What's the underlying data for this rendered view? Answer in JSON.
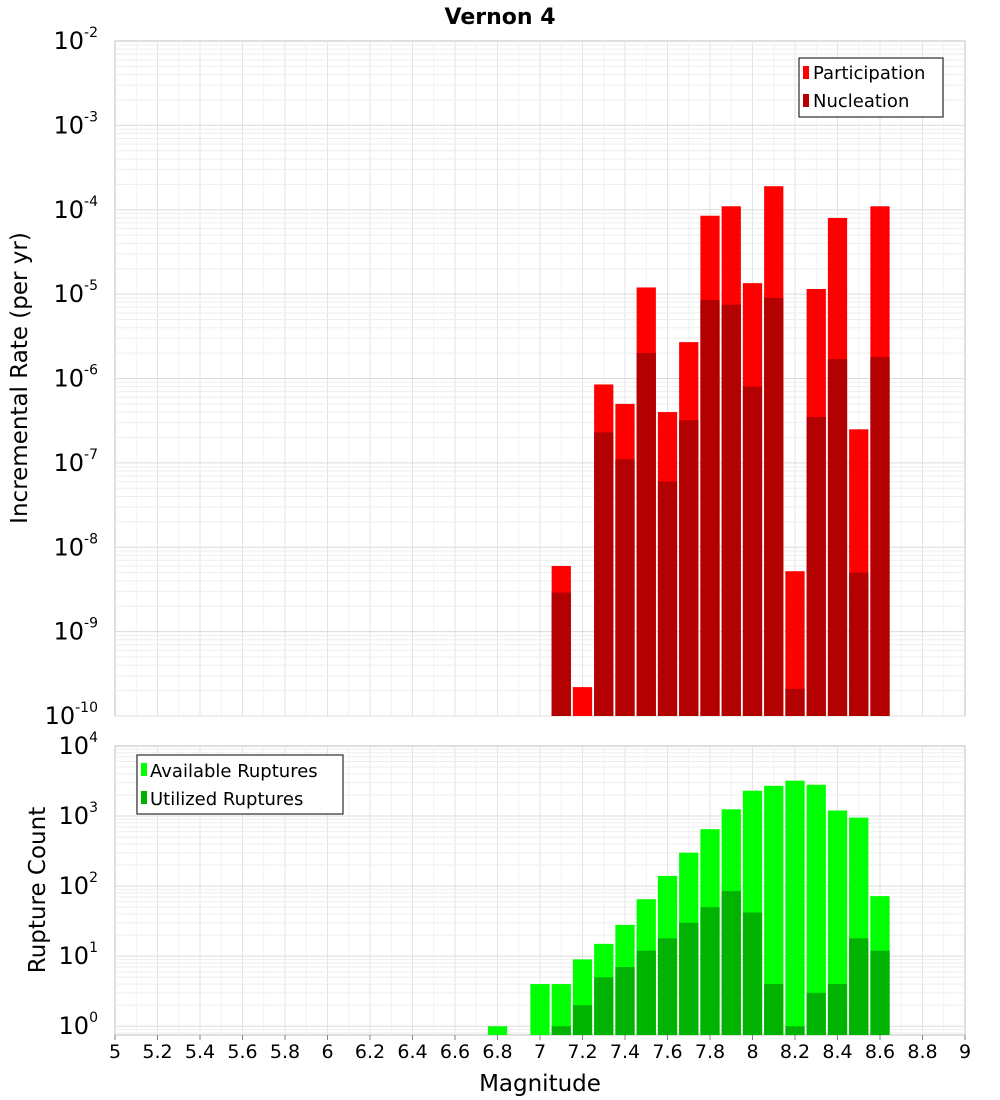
{
  "chart_data": [
    {
      "type": "bar",
      "title": "Vernon 4",
      "xlabel": "",
      "ylabel": "Incremental Rate (per yr)",
      "yscale": "log",
      "ylim": [
        1e-10,
        0.01
      ],
      "y_ticks": [
        {
          "base": "10",
          "exp": "-10",
          "value": 1e-10
        },
        {
          "base": "10",
          "exp": "-9",
          "value": 1e-09
        },
        {
          "base": "10",
          "exp": "-8",
          "value": 1e-08
        },
        {
          "base": "10",
          "exp": "-7",
          "value": 1e-07
        },
        {
          "base": "10",
          "exp": "-6",
          "value": 1e-06
        },
        {
          "base": "10",
          "exp": "-5",
          "value": 1e-05
        },
        {
          "base": "10",
          "exp": "-4",
          "value": 0.0001
        },
        {
          "base": "10",
          "exp": "-3",
          "value": 0.001
        },
        {
          "base": "10",
          "exp": "-2",
          "value": 0.01
        }
      ],
      "x": [
        7.1,
        7.2,
        7.3,
        7.4,
        7.5,
        7.6,
        7.7,
        7.8,
        7.9,
        8.0,
        8.1,
        8.2,
        8.3,
        8.4,
        8.5,
        8.6
      ],
      "series": [
        {
          "name": "Participation",
          "color": "#ff0000",
          "values": [
            6e-09,
            2.2e-10,
            8.5e-07,
            5e-07,
            1.2e-05,
            4e-07,
            2.7e-06,
            8.5e-05,
            0.00011,
            1.35e-05,
            0.00019,
            5.2e-09,
            1.15e-05,
            8e-05,
            2.5e-07,
            0.00011
          ]
        },
        {
          "name": "Nucleation",
          "color": "#b30000",
          "values": [
            2.9e-09,
            null,
            2.3e-07,
            1.1e-07,
            2e-06,
            6e-08,
            3.2e-07,
            8.5e-06,
            7.5e-06,
            8e-07,
            9e-06,
            2.1e-10,
            3.5e-07,
            1.7e-06,
            5e-09,
            1.8e-06
          ]
        }
      ],
      "legend": "top-right"
    },
    {
      "type": "bar",
      "title": "",
      "xlabel": "Magnitude",
      "ylabel": "Rupture Count",
      "yscale": "log",
      "ylim": [
        0.75,
        10000
      ],
      "y_ticks": [
        {
          "base": "10",
          "exp": "0",
          "value": 1
        },
        {
          "base": "10",
          "exp": "1",
          "value": 10
        },
        {
          "base": "10",
          "exp": "2",
          "value": 100
        },
        {
          "base": "10",
          "exp": "3",
          "value": 1000
        },
        {
          "base": "10",
          "exp": "4",
          "value": 10000
        }
      ],
      "x": [
        6.8,
        7.0,
        7.1,
        7.2,
        7.3,
        7.4,
        7.5,
        7.6,
        7.7,
        7.8,
        7.9,
        8.0,
        8.1,
        8.2,
        8.3,
        8.4,
        8.5,
        8.6
      ],
      "series": [
        {
          "name": "Available Ruptures",
          "color": "#00ff00",
          "values": [
            1,
            4,
            4,
            9,
            15,
            28,
            65,
            140,
            300,
            650,
            1250,
            2300,
            2700,
            3200,
            2800,
            1200,
            950,
            72
          ]
        },
        {
          "name": "Utilized Ruptures",
          "color": "#00b300",
          "values": [
            null,
            null,
            1,
            2,
            5,
            7,
            12,
            18,
            30,
            50,
            85,
            42,
            4,
            1,
            3,
            4,
            18,
            12
          ]
        }
      ],
      "legend": "top-left"
    }
  ],
  "x_axis": {
    "xlim": [
      5,
      9
    ],
    "tick_labels": [
      "5",
      "5.2",
      "5.4",
      "5.6",
      "5.8",
      "6",
      "6.2",
      "6.4",
      "6.6",
      "6.8",
      "7",
      "7.2",
      "7.4",
      "7.6",
      "7.8",
      "8",
      "8.2",
      "8.4",
      "8.6",
      "8.8",
      "9"
    ]
  }
}
